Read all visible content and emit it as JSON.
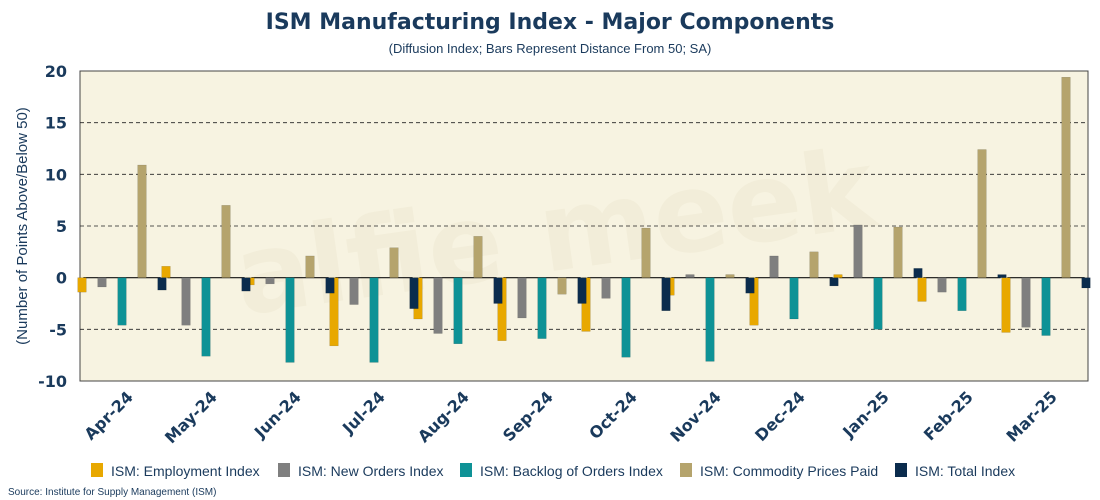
{
  "chart_data": {
    "type": "bar",
    "title": "ISM Manufacturing Index - Major Components",
    "subtitle": "(Diffusion Index; Bars Represent Distance From 50; SA)",
    "ylabel": "(Number of Points Above/Below 50)",
    "xlabel": "",
    "ylim": [
      -10,
      20
    ],
    "yticks": [
      -10,
      -5,
      0,
      5,
      10,
      15,
      20
    ],
    "grid": true,
    "legend_position": "bottom",
    "source": "Source: Institute for Supply Management (ISM)",
    "watermark": "alfie meek",
    "categories": [
      "Apr-24",
      "May-24",
      "Jun-24",
      "Jul-24",
      "Aug-24",
      "Sep-24",
      "Oct-24",
      "Nov-24",
      "Dec-24",
      "Jan-25",
      "Feb-25",
      "Mar-25"
    ],
    "series": [
      {
        "name": "ISM: Employment Index",
        "color": "#e8a800",
        "values": [
          -1.4,
          1.1,
          -0.7,
          -6.6,
          -4.0,
          -6.1,
          -5.2,
          -1.7,
          -4.6,
          0.3,
          -2.3,
          -5.3
        ]
      },
      {
        "name": "ISM: New Orders Index",
        "color": "#7f7f7f",
        "values": [
          -0.9,
          -4.6,
          -0.6,
          -2.6,
          -5.4,
          -3.9,
          -2.0,
          0.3,
          2.1,
          5.1,
          -1.4,
          -4.8
        ]
      },
      {
        "name": "ISM: Backlog of Orders Index",
        "color": "#0e9296",
        "values": [
          -4.6,
          -7.6,
          -8.2,
          -8.2,
          -6.4,
          -5.9,
          -7.7,
          -8.1,
          -4.0,
          -5.0,
          -3.2,
          -5.6
        ]
      },
      {
        "name": "ISM: Commodity Prices Paid",
        "color": "#b5a46d",
        "values": [
          10.9,
          7.0,
          2.1,
          2.9,
          4.0,
          -1.6,
          4.8,
          0.3,
          2.5,
          4.9,
          12.4,
          19.4
        ]
      },
      {
        "name": "ISM: Total Index",
        "color": "#0b2c4d",
        "values": [
          -1.2,
          -1.3,
          -1.5,
          -3.0,
          -2.5,
          -2.5,
          -3.2,
          -1.5,
          -0.8,
          0.9,
          0.3,
          -1.0
        ]
      }
    ]
  }
}
